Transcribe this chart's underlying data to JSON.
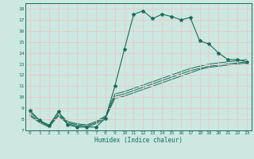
{
  "bg_color": "#cce8e0",
  "grid_color": "#e8c8c8",
  "line_color": "#1a6b5a",
  "xlabel": "Humidex (Indice chaleur)",
  "xlim": [
    -0.5,
    23.5
  ],
  "ylim": [
    7,
    18.5
  ],
  "yticks": [
    7,
    8,
    9,
    10,
    11,
    12,
    13,
    14,
    15,
    16,
    17,
    18
  ],
  "xticks": [
    0,
    1,
    2,
    3,
    4,
    5,
    6,
    7,
    8,
    9,
    10,
    11,
    12,
    13,
    14,
    15,
    16,
    17,
    18,
    19,
    20,
    21,
    22,
    23
  ],
  "main_line": [
    8.8,
    7.9,
    7.4,
    8.7,
    7.5,
    7.3,
    7.3,
    7.3,
    8.1,
    11.0,
    14.3,
    17.5,
    17.8,
    17.1,
    17.5,
    17.3,
    17.0,
    17.2,
    15.1,
    14.8,
    14.0,
    13.4,
    13.4,
    13.2
  ],
  "line2": [
    8.6,
    7.9,
    7.5,
    8.6,
    7.8,
    7.6,
    7.5,
    7.8,
    8.3,
    10.3,
    10.5,
    10.8,
    11.1,
    11.4,
    11.7,
    12.0,
    12.3,
    12.6,
    12.8,
    13.0,
    13.1,
    13.2,
    13.3,
    13.4
  ],
  "line3": [
    8.4,
    7.8,
    7.4,
    8.4,
    7.7,
    7.5,
    7.4,
    7.7,
    8.2,
    10.1,
    10.3,
    10.6,
    10.9,
    11.2,
    11.5,
    11.8,
    12.1,
    12.4,
    12.6,
    12.8,
    12.9,
    13.0,
    13.1,
    13.2
  ],
  "line4": [
    8.3,
    7.7,
    7.3,
    8.3,
    7.6,
    7.4,
    7.3,
    7.6,
    8.1,
    9.9,
    10.1,
    10.4,
    10.7,
    11.0,
    11.3,
    11.6,
    11.9,
    12.2,
    12.5,
    12.7,
    12.8,
    12.9,
    13.0,
    13.1
  ]
}
